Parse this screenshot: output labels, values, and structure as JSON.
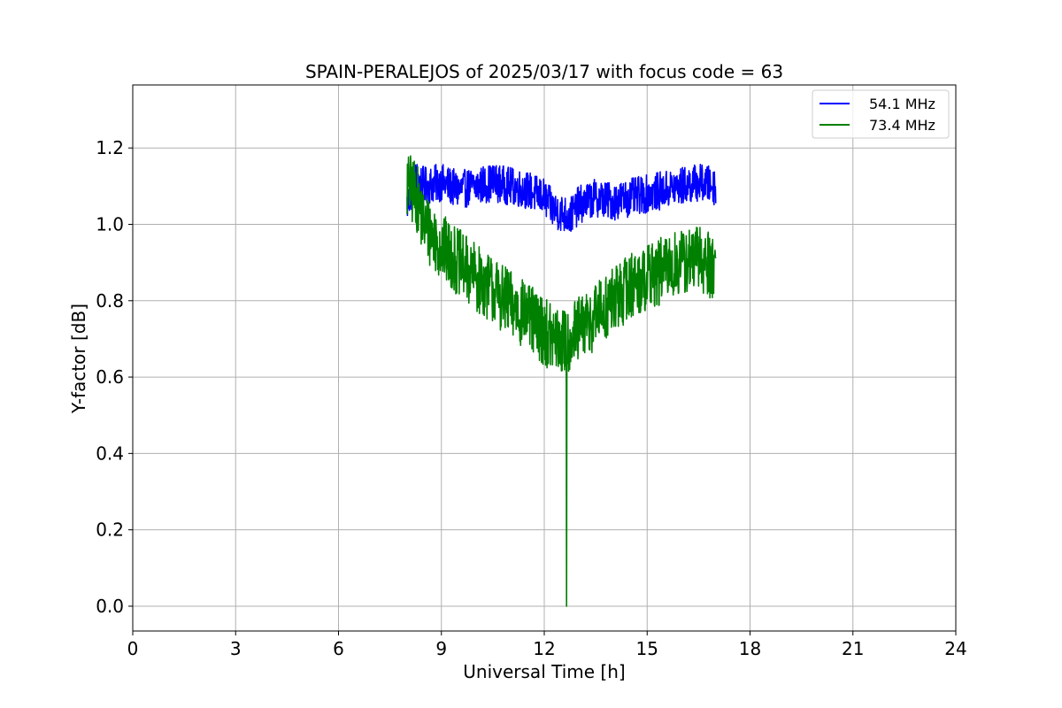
{
  "chart_data": {
    "type": "line",
    "title": "SPAIN-PERALEJOS of 2025/03/17 with focus code = 63",
    "xlabel": "Universal Time [h]",
    "ylabel": "Y-factor [dB]",
    "xlim": [
      0,
      24
    ],
    "ylim": [
      -0.065,
      1.365
    ],
    "xticks": [
      0,
      3,
      6,
      9,
      12,
      15,
      18,
      21,
      24
    ],
    "xtick_labels": [
      "0",
      "3",
      "6",
      "9",
      "12",
      "15",
      "18",
      "21",
      "24"
    ],
    "yticks": [
      0.0,
      0.2,
      0.4,
      0.6,
      0.8,
      1.0,
      1.2
    ],
    "ytick_labels": [
      "0.0",
      "0.2",
      "0.4",
      "0.6",
      "0.8",
      "1.0",
      "1.2"
    ],
    "grid": true,
    "legend_position": "top-right",
    "series": [
      {
        "name": "54.1 MHz",
        "color": "#0000ff",
        "x": [
          8.0,
          8.25,
          8.5,
          9.0,
          9.5,
          10.0,
          10.5,
          11.0,
          11.5,
          12.0,
          12.25,
          12.5,
          12.75,
          13.0,
          13.5,
          14.0,
          14.5,
          15.0,
          15.5,
          16.0,
          16.5,
          17.0
        ],
        "y": [
          1.05,
          1.12,
          1.1,
          1.11,
          1.09,
          1.1,
          1.11,
          1.1,
          1.09,
          1.07,
          1.04,
          1.03,
          1.02,
          1.05,
          1.07,
          1.06,
          1.07,
          1.08,
          1.09,
          1.1,
          1.11,
          1.1
        ],
        "noise": 0.05
      },
      {
        "name": "73.4 MHz",
        "color": "#008000",
        "x": [
          8.0,
          8.25,
          8.5,
          9.0,
          9.5,
          10.0,
          10.5,
          11.0,
          11.5,
          12.0,
          12.25,
          12.5,
          12.75,
          13.0,
          13.5,
          14.0,
          14.5,
          15.0,
          15.5,
          16.0,
          16.5,
          17.0
        ],
        "y": [
          1.1,
          1.08,
          1.0,
          0.94,
          0.9,
          0.86,
          0.83,
          0.79,
          0.76,
          0.72,
          0.7,
          0.69,
          0.7,
          0.72,
          0.76,
          0.8,
          0.84,
          0.86,
          0.88,
          0.9,
          0.91,
          0.89
        ],
        "noise": 0.09,
        "spike": {
          "x": 12.65,
          "y": 0.0
        }
      }
    ]
  }
}
